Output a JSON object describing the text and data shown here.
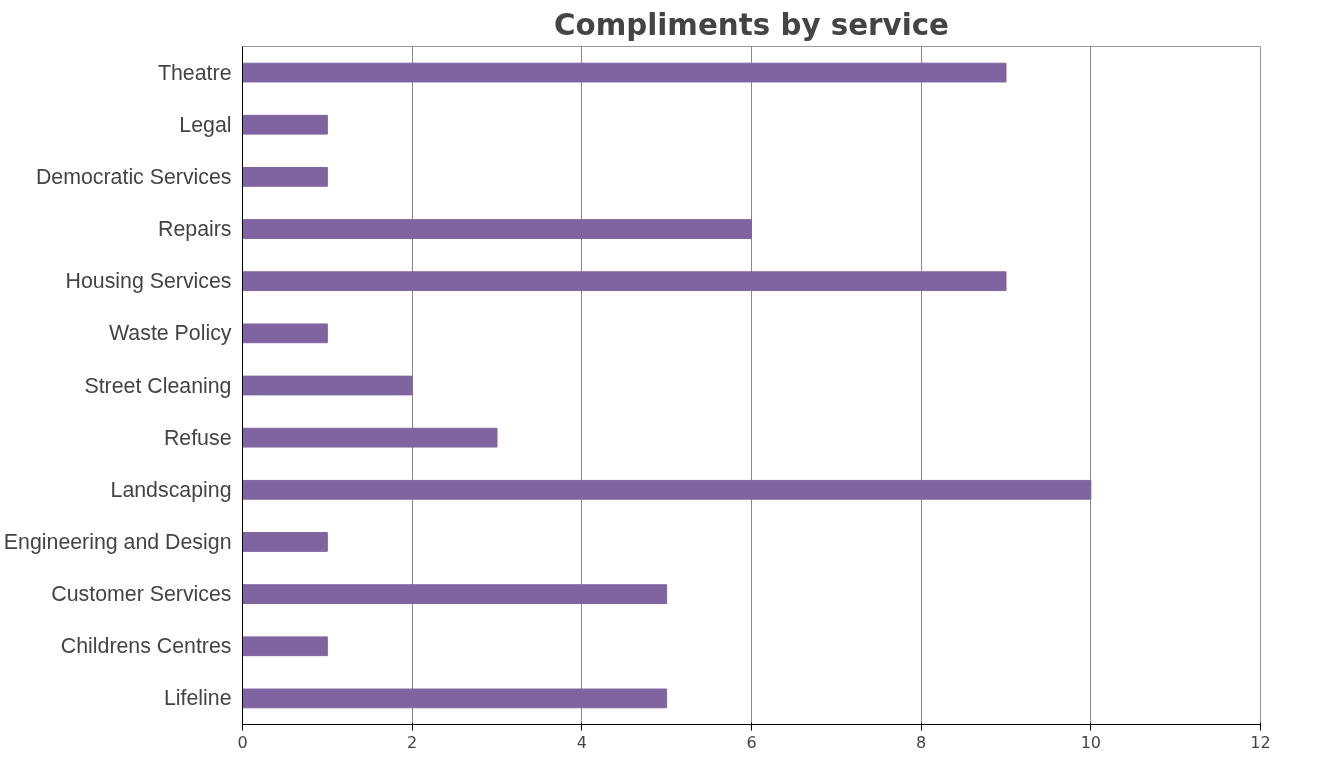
{
  "chart_data": {
    "type": "bar",
    "orientation": "horizontal",
    "title": "Compliments by service",
    "categories": [
      "Theatre",
      "Legal",
      "Democratic Services",
      "Repairs",
      "Housing Services",
      "Waste Policy",
      "Street Cleaning",
      "Refuse",
      "Landscaping",
      "Engineering and Design",
      "Customer Services",
      "Childrens Centres",
      "Lifeline"
    ],
    "values": [
      9,
      1,
      1,
      6,
      9,
      1,
      2,
      3,
      10,
      1,
      5,
      1,
      5
    ],
    "color": "#8064a2",
    "xlim": [
      0,
      12
    ],
    "xticks": [
      0,
      2,
      4,
      6,
      8,
      10,
      12
    ],
    "grid": "x"
  }
}
